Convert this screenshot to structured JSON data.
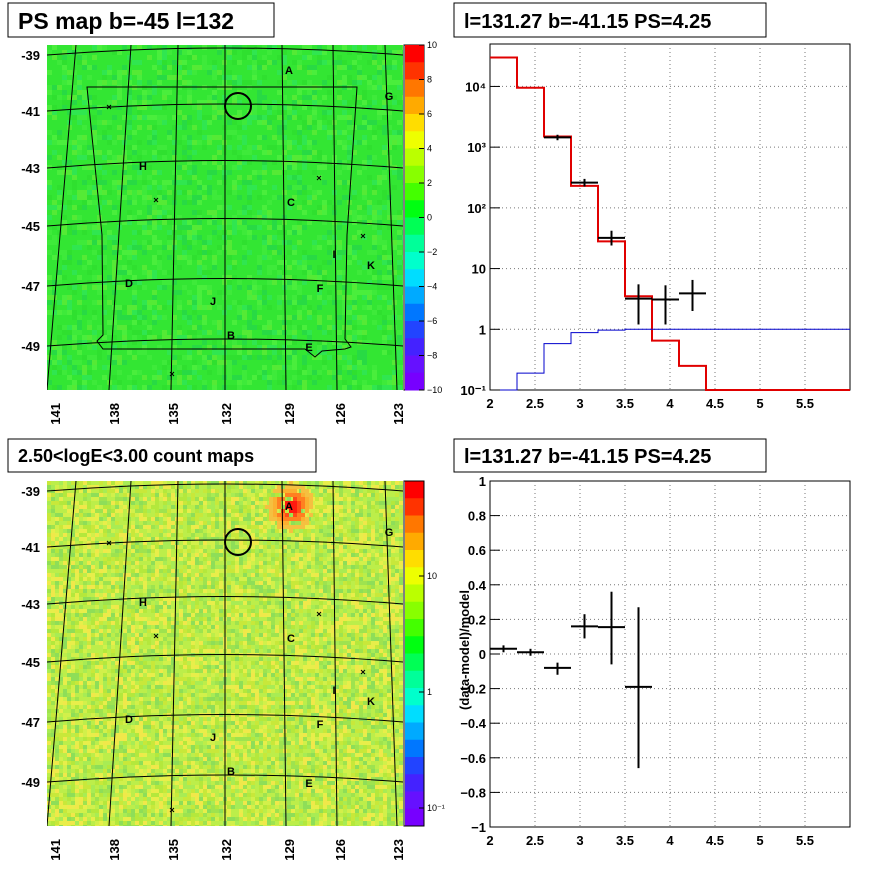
{
  "chart_data": [
    {
      "type": "heatmap",
      "title": "PS map b=-45 l=132",
      "x_tick_labels": [
        "141",
        "138",
        "135",
        "132",
        "129",
        "126",
        "123"
      ],
      "y_tick_labels": [
        "-39",
        "-41",
        "-43",
        "-45",
        "-47",
        "-49"
      ],
      "colorbar": {
        "min": -10,
        "max": 10,
        "tick_labels": [
          "10",
          "8",
          "6",
          "4",
          "2",
          "0",
          "−2",
          "−4",
          "−6",
          "−8",
          "−10"
        ]
      },
      "source_labels": [
        "A",
        "G",
        "H",
        "C",
        "I",
        "K",
        "D",
        "F",
        "J",
        "B",
        "E"
      ],
      "background_color": "#33e633"
    },
    {
      "type": "bar",
      "title": "l=131.27 b=-41.15 PS=4.25",
      "y_scale": "log",
      "xlim": [
        2,
        6
      ],
      "ylim": [
        0.1,
        50000
      ],
      "x_tick_labels": [
        "2",
        "2.5",
        "3",
        "3.5",
        "4",
        "4.5",
        "5",
        "5.5"
      ],
      "y_tick_labels": [
        "10⁴",
        "10³",
        "10²",
        "10",
        "1",
        "10⁻¹"
      ],
      "series": [
        {
          "color": "#e00000",
          "bin_edges": [
            2.0,
            2.3,
            2.6,
            2.9,
            3.2,
            3.5,
            3.8,
            4.1,
            4.4,
            6.0
          ],
          "values": [
            30000,
            9500,
            1500,
            230,
            28,
            3.5,
            0.65,
            0.25,
            0.1
          ]
        },
        {
          "color": "#0000cc",
          "bin_edges": [
            2.0,
            2.3,
            2.6,
            2.9,
            3.2,
            3.5,
            6.0
          ],
          "values": [
            0.1,
            0.19,
            0.58,
            0.88,
            0.97,
            1.0
          ]
        },
        {
          "color": "#000000",
          "points": [
            {
              "x": 2.75,
              "y": 1450,
              "xerr": 0.15,
              "ylo": 1300,
              "yhi": 1600
            },
            {
              "x": 3.05,
              "y": 260,
              "xerr": 0.15,
              "ylo": 225,
              "yhi": 300
            },
            {
              "x": 3.35,
              "y": 32,
              "xerr": 0.15,
              "ylo": 24,
              "yhi": 42
            },
            {
              "x": 3.65,
              "y": 3.2,
              "xerr": 0.15,
              "ylo": 1.2,
              "yhi": 5.5
            },
            {
              "x": 3.95,
              "y": 3.1,
              "xerr": 0.15,
              "ylo": 1.2,
              "yhi": 5.3
            },
            {
              "x": 4.25,
              "y": 3.9,
              "xerr": 0.15,
              "ylo": 2.0,
              "yhi": 6.5
            }
          ]
        }
      ]
    },
    {
      "type": "heatmap",
      "title": "2.50<logE<3.00 count maps",
      "x_tick_labels": [
        "141",
        "138",
        "135",
        "132",
        "129",
        "126",
        "123"
      ],
      "y_tick_labels": [
        "-39",
        "-41",
        "-43",
        "-45",
        "-47",
        "-49"
      ],
      "colorbar": {
        "scale": "log",
        "tick_labels": [
          "10",
          "1",
          "10⁻¹"
        ]
      },
      "source_labels": [
        "A",
        "G",
        "H",
        "C",
        "I",
        "K",
        "D",
        "F",
        "J",
        "B",
        "E"
      ],
      "background_color": "#bcee4a"
    },
    {
      "type": "scatter",
      "title": "l=131.27 b=-41.15 PS=4.25",
      "ylabel": "(data-model)/model",
      "xlim": [
        2,
        6
      ],
      "ylim": [
        -1,
        1
      ],
      "x_tick_labels": [
        "2",
        "2.5",
        "3",
        "3.5",
        "4",
        "4.5",
        "5",
        "5.5"
      ],
      "y_tick_labels": [
        "1",
        "0.8",
        "0.6",
        "0.4",
        "0.2",
        "0",
        "−0.2",
        "−0.4",
        "−0.6",
        "−0.8",
        "−1"
      ],
      "points": [
        {
          "x": 2.15,
          "y": 0.03,
          "xerr": 0.15,
          "ylo": 0.01,
          "yhi": 0.05
        },
        {
          "x": 2.45,
          "y": 0.01,
          "xerr": 0.15,
          "ylo": -0.01,
          "yhi": 0.03
        },
        {
          "x": 2.75,
          "y": -0.08,
          "xerr": 0.15,
          "ylo": -0.12,
          "yhi": -0.05
        },
        {
          "x": 3.05,
          "y": 0.16,
          "xerr": 0.15,
          "ylo": 0.09,
          "yhi": 0.23
        },
        {
          "x": 3.35,
          "y": 0.155,
          "xerr": 0.15,
          "ylo": -0.06,
          "yhi": 0.36
        },
        {
          "x": 3.65,
          "y": -0.19,
          "xerr": 0.15,
          "ylo": -0.66,
          "yhi": 0.27
        }
      ]
    }
  ]
}
